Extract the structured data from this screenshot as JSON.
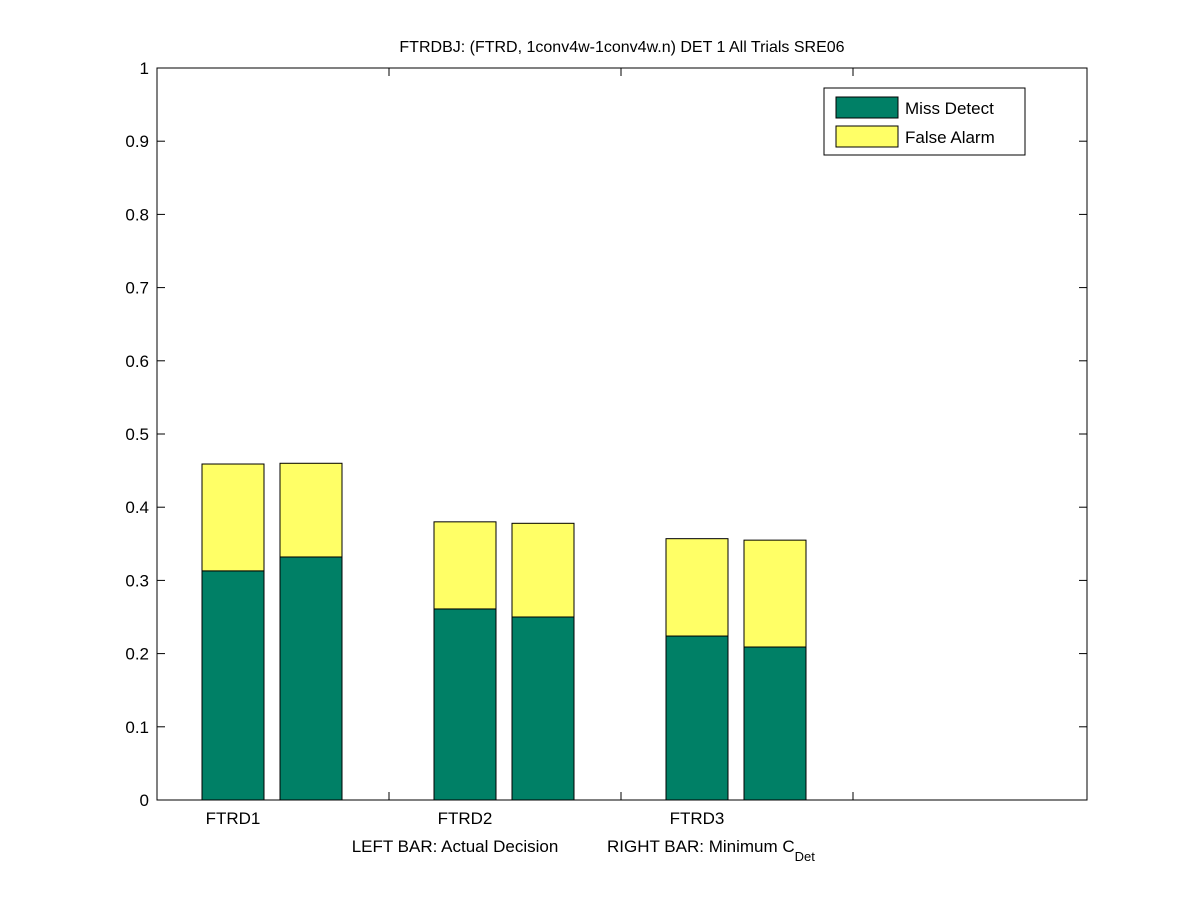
{
  "chart_data": {
    "type": "bar",
    "stacked": true,
    "title": "FTRDBJ: (FTRD, 1conv4w-1conv4w.n) DET 1 All Trials SRE06",
    "xlabel_left": "LEFT BAR: Actual Decision",
    "xlabel_right": "RIGHT BAR: Minimum C",
    "xlabel_right_subscript": "Det",
    "categories": [
      "FTRD1",
      "FTRD2",
      "FTRD3"
    ],
    "ylim": [
      0,
      1
    ],
    "yticks": [
      "0",
      "0.1",
      "0.2",
      "0.3",
      "0.4",
      "0.5",
      "0.6",
      "0.7",
      "0.8",
      "0.9",
      "1"
    ],
    "grid": false,
    "legend_position": "top-right",
    "series": [
      {
        "name": "Miss Detect",
        "color": "#008066",
        "actual": [
          0.313,
          0.261,
          0.224
        ],
        "minimum": [
          0.332,
          0.25,
          0.209
        ]
      },
      {
        "name": "False Alarm",
        "color": "#ffff66",
        "actual": [
          0.146,
          0.119,
          0.133
        ],
        "minimum": [
          0.128,
          0.128,
          0.146
        ]
      }
    ]
  }
}
